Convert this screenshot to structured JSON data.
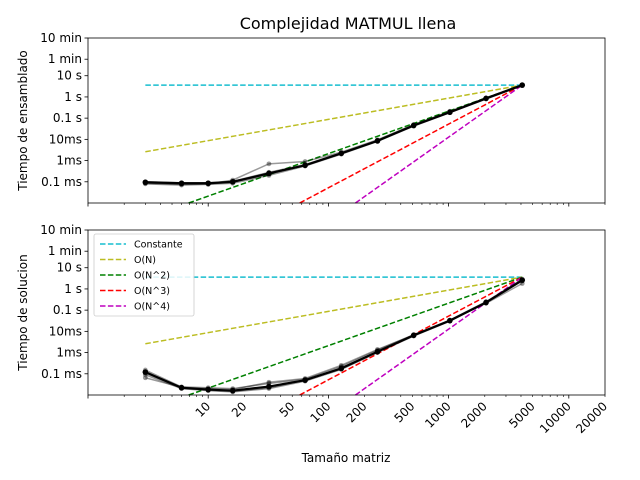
{
  "chart_data": {
    "type": "line",
    "title": "Complejidad MATMUL llena",
    "xlabel": "Tamaño matriz",
    "xscale": "log",
    "yscale": "log",
    "xlim": [
      1,
      20000
    ],
    "x_ticks": [
      10,
      20,
      50,
      100,
      200,
      500,
      1000,
      2000,
      5000,
      10000,
      20000
    ],
    "x_tick_labels": [
      "10",
      "20",
      "50",
      "100",
      "200",
      "500",
      "1000",
      "2000",
      "5000",
      "10000",
      "20000"
    ],
    "y_ticks_seconds": [
      0.0001,
      0.001,
      0.01,
      0.1,
      1,
      10,
      60,
      600
    ],
    "y_tick_labels": [
      "0.1 ms",
      "1ms",
      "10ms",
      "0.1 s",
      "1 s",
      "10 s",
      "1 min",
      "10 min"
    ],
    "ylim": [
      1e-05,
      600
    ],
    "grid": false,
    "legend": {
      "location": "upper-left",
      "panel": "bottom",
      "entries": [
        {
          "name": "Constante",
          "color": "#17becf"
        },
        {
          "name": "O(N)",
          "color": "#bcbd22"
        },
        {
          "name": "O(N^2)",
          "color": "#008000"
        },
        {
          "name": "O(N^3)",
          "color": "#ff0000"
        },
        {
          "name": "O(N^4)",
          "color": "#bf00bf"
        }
      ]
    },
    "panels": [
      {
        "ylabel": "Tiempo de ensamblado",
        "x": [
          3,
          6,
          10,
          16,
          32,
          64,
          128,
          256,
          512,
          1024,
          2048,
          4096
        ],
        "mean_values": [
          9.5e-05,
          8.5e-05,
          8.5e-05,
          0.0001,
          0.00025,
          0.0006,
          0.0022,
          0.0085,
          0.045,
          0.19,
          0.85,
          3.6
        ],
        "run_values": [
          [
            8e-05,
            7e-05,
            7.5e-05,
            8.5e-05,
            0.0002,
            0.00055,
            0.002,
            0.008,
            0.042,
            0.18,
            0.8,
            3.4
          ],
          [
            0.0001,
            9e-05,
            9e-05,
            0.000105,
            0.00028,
            0.00065,
            0.0023,
            0.009,
            0.048,
            0.2,
            0.88,
            3.7
          ],
          [
            9e-05,
            8e-05,
            8e-05,
            9.5e-05,
            0.00023,
            0.0006,
            0.0021,
            0.0082,
            0.044,
            0.185,
            0.84,
            3.5
          ],
          [
            8.5e-05,
            7.5e-05,
            8e-05,
            0.00012,
            0.0007,
            0.0009,
            0.0025,
            0.0095,
            0.05,
            0.21,
            0.9,
            3.8
          ]
        ],
        "reference_lines": [
          {
            "name": "Constante",
            "x": [
              3,
              4096
            ],
            "y": [
              3.6,
              3.6
            ]
          },
          {
            "name": "O(N)",
            "x": [
              3,
              4096
            ],
            "y": [
              0.0026,
              3.6
            ]
          },
          {
            "name": "O(N^2)",
            "x": [
              3,
              4096
            ],
            "y": [
              1.9e-06,
              3.6
            ]
          },
          {
            "name": "O(N^3)",
            "x": [
              3,
              4096
            ],
            "y": [
              1.4e-09,
              3.6
            ]
          },
          {
            "name": "O(N^4)",
            "x": [
              3,
              4096
            ],
            "y": [
              1e-12,
              3.6
            ]
          }
        ]
      },
      {
        "ylabel": "Tiempo de solucion",
        "x": [
          3,
          6,
          10,
          16,
          32,
          64,
          128,
          256,
          512,
          1024,
          2048,
          4096
        ],
        "mean_values": [
          0.00012,
          2.2e-05,
          1.8e-05,
          1.6e-05,
          2.5e-05,
          5e-05,
          0.00018,
          0.0011,
          0.0065,
          0.032,
          0.23,
          2.6
        ],
        "run_values": [
          [
            9e-05,
            2e-05,
            1.6e-05,
            1.4e-05,
            2e-05,
            4.5e-05,
            0.00016,
            0.001,
            0.006,
            0.03,
            0.22,
            2.4
          ],
          [
            0.00015,
            2.4e-05,
            2.2e-05,
            2e-05,
            3.5e-05,
            5.5e-05,
            0.00022,
            0.0013,
            0.007,
            0.034,
            0.25,
            2.9
          ],
          [
            0.00011,
            2.1e-05,
            1.7e-05,
            1.5e-05,
            2.2e-05,
            5e-05,
            0.00017,
            0.0011,
            0.0065,
            0.031,
            0.23,
            2.5
          ],
          [
            6.5e-05,
            2.3e-05,
            2e-05,
            1.8e-05,
            4e-05,
            6e-05,
            0.00025,
            0.0014,
            0.0068,
            0.033,
            0.21,
            1.8
          ]
        ],
        "reference_lines": [
          {
            "name": "Constante",
            "x": [
              3,
              4096
            ],
            "y": [
              3.6,
              3.6
            ]
          },
          {
            "name": "O(N)",
            "x": [
              3,
              4096
            ],
            "y": [
              0.0026,
              3.6
            ]
          },
          {
            "name": "O(N^2)",
            "x": [
              3,
              4096
            ],
            "y": [
              1.9e-06,
              3.6
            ]
          },
          {
            "name": "O(N^3)",
            "x": [
              3,
              4096
            ],
            "y": [
              1.4e-09,
              3.6
            ]
          },
          {
            "name": "O(N^4)",
            "x": [
              3,
              4096
            ],
            "y": [
              1e-12,
              3.6
            ]
          }
        ]
      }
    ]
  }
}
